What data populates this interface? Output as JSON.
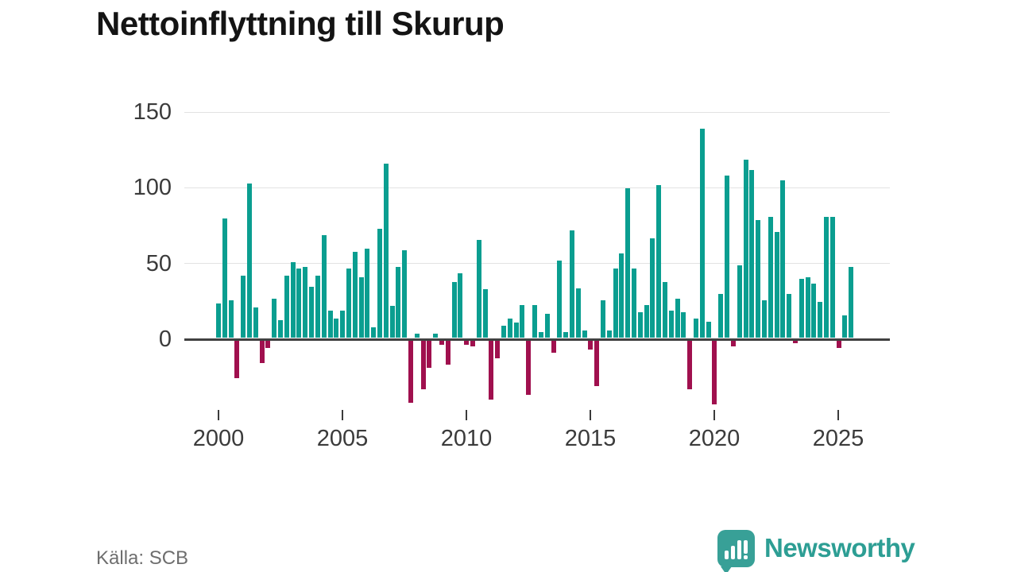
{
  "title": "Nettoinflyttning till Skurup",
  "source": "Källa: SCB",
  "logo": {
    "text": "Newsworthy"
  },
  "colors": {
    "positive_bar": "#0a9e90",
    "negative_bar": "#a0104e",
    "grid": "#e2e2e2",
    "zero_line": "#414141",
    "axis_text": "#3b3b3b",
    "logo_teal": "#38a097"
  },
  "chart_data": {
    "type": "bar",
    "title": "Nettoinflyttning till Skurup",
    "frequency": "quarterly",
    "start": "2000 Q1",
    "end": "2025 Q3",
    "xlabel": "",
    "ylabel": "",
    "ylim": [
      -50,
      150
    ],
    "grid": "horizontal",
    "y_tick_labels": [
      "150",
      "100",
      "50",
      "0"
    ],
    "y_tick_values": [
      150,
      100,
      50,
      0
    ],
    "x_tick_labels": [
      "2000",
      "2005",
      "2010",
      "2015",
      "2020",
      "2025"
    ],
    "values": [
      23,
      79,
      25,
      -25,
      41,
      102,
      20,
      -15,
      -5,
      26,
      12,
      41,
      50,
      46,
      47,
      34,
      41,
      68,
      18,
      13,
      18,
      46,
      57,
      40,
      59,
      7,
      72,
      115,
      21,
      47,
      58,
      -41,
      3,
      -32,
      -18,
      3,
      -3,
      -16,
      37,
      43,
      -3,
      -4,
      65,
      32,
      -39,
      -12,
      8,
      13,
      10,
      22,
      -36,
      22,
      4,
      16,
      -8,
      51,
      4,
      71,
      33,
      5,
      -6,
      -30,
      25,
      5,
      46,
      56,
      99,
      46,
      17,
      22,
      66,
      101,
      37,
      18,
      26,
      17,
      -32,
      13,
      138,
      11,
      -42,
      29,
      107,
      -4,
      48,
      118,
      111,
      78,
      25,
      80,
      70,
      104,
      29,
      -2,
      39,
      40,
      36,
      24,
      80,
      80,
      -5,
      15,
      47
    ]
  }
}
